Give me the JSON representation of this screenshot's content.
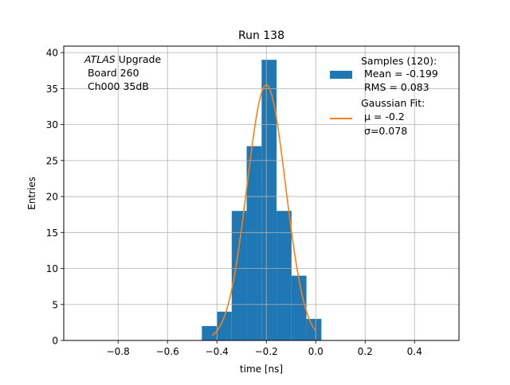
{
  "chart_data": {
    "type": "bar",
    "title": "Run 138",
    "xlabel": "time [ns]",
    "ylabel": "Entries",
    "xlim": [
      -1.02,
      0.58
    ],
    "ylim": [
      0,
      40.9
    ],
    "xticks": [
      -0.8,
      -0.6,
      -0.4,
      -0.2,
      0.0,
      0.2,
      0.4
    ],
    "xtick_labels": [
      "−0.8",
      "−0.6",
      "−0.4",
      "−0.2",
      "0.0",
      "0.2",
      "0.4"
    ],
    "yticks": [
      0,
      5,
      10,
      15,
      20,
      25,
      30,
      35,
      40
    ],
    "ytick_labels": [
      "0",
      "5",
      "10",
      "15",
      "20",
      "25",
      "30",
      "35",
      "40"
    ],
    "grid": true,
    "histogram": {
      "bin_edges": [
        -0.461,
        -0.4005,
        -0.34,
        -0.2795,
        -0.219,
        -0.1585,
        -0.098,
        -0.0375,
        0.023
      ],
      "counts": [
        2,
        4,
        18,
        27,
        39,
        18,
        9,
        3
      ],
      "color": "#1f77b4"
    },
    "gaussian_fit": {
      "mu": -0.2,
      "sigma": 0.078,
      "amplitude": 35.5,
      "x_range": [
        -0.42,
        0.0
      ],
      "color": "#ff7f0e"
    },
    "annotation": {
      "line1_italic": "ATLAS",
      "line1_rest": " Upgrade",
      "line2": " Board 260",
      "line3": " Ch000 35dB"
    },
    "legend": {
      "placement": "top-right",
      "samples": [
        "Samples (120):",
        " Mean = -0.199",
        " RMS = 0.083"
      ],
      "fit": [
        "Gaussian Fit:",
        " μ = -0.2",
        " σ=0.078"
      ]
    }
  }
}
